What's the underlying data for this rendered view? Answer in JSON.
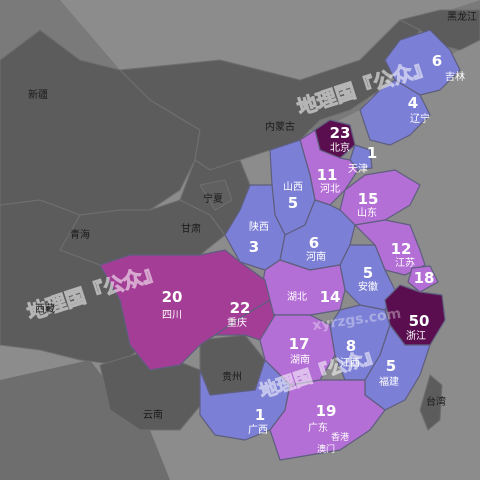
{
  "colors": {
    "background": "#8a8a8a",
    "land": "#5c5c5c",
    "low": "#7b7fd6",
    "mid": "#b46fd6",
    "high": "#a43d96",
    "top": "#5a0e50"
  },
  "watermarks": {
    "w1": "地理国『公众』",
    "w2": "地理国『公众』",
    "w3": "xyrzgs.com",
    "w4": "地理国『公众』"
  },
  "regions": {
    "heilongjiang": "黑龙江",
    "jilin": {
      "name": "吉林",
      "value": 6
    },
    "liaoning": {
      "name": "辽宁",
      "value": 4
    },
    "neimenggu": "内蒙古",
    "beijing": {
      "name": "北京",
      "value": 23
    },
    "tianjin": {
      "name": "天津",
      "value": 1
    },
    "hebei": {
      "name": "河北",
      "value": 11
    },
    "shandong": {
      "name": "山东",
      "value": 15
    },
    "shanxi": {
      "name": "山西",
      "value": 5
    },
    "ningxia": "宁夏",
    "gansu": "甘肃",
    "shaanxi": {
      "name": "陕西",
      "value": 3
    },
    "henan": {
      "name": "河南",
      "value": 6
    },
    "jiangsu": {
      "name": "江苏",
      "value": 12
    },
    "shanghai": {
      "value": 18
    },
    "anhui": {
      "name": "安徽",
      "value": 5
    },
    "hubei": {
      "name": "湖北",
      "value": 14
    },
    "zhejiang": {
      "name": "浙江",
      "value": 50
    },
    "sichuan": {
      "name": "四川",
      "value": 20
    },
    "chongqing": {
      "name": "重庆",
      "value": 22
    },
    "hunan": {
      "name": "湖南",
      "value": 17
    },
    "jiangxi": {
      "name": "江西",
      "value": 8
    },
    "fujian": {
      "name": "福建",
      "value": 5
    },
    "guizhou": "贵州",
    "yunnan": "云南",
    "guangxi": {
      "name": "广西",
      "value": 1
    },
    "guangdong": {
      "name": "广东",
      "value": 19
    },
    "hongkong": "香港",
    "aomen": "澳门",
    "taiwan": "台湾",
    "xinjiang": "新疆",
    "xizang": "西藏",
    "qinghai": "青海"
  }
}
